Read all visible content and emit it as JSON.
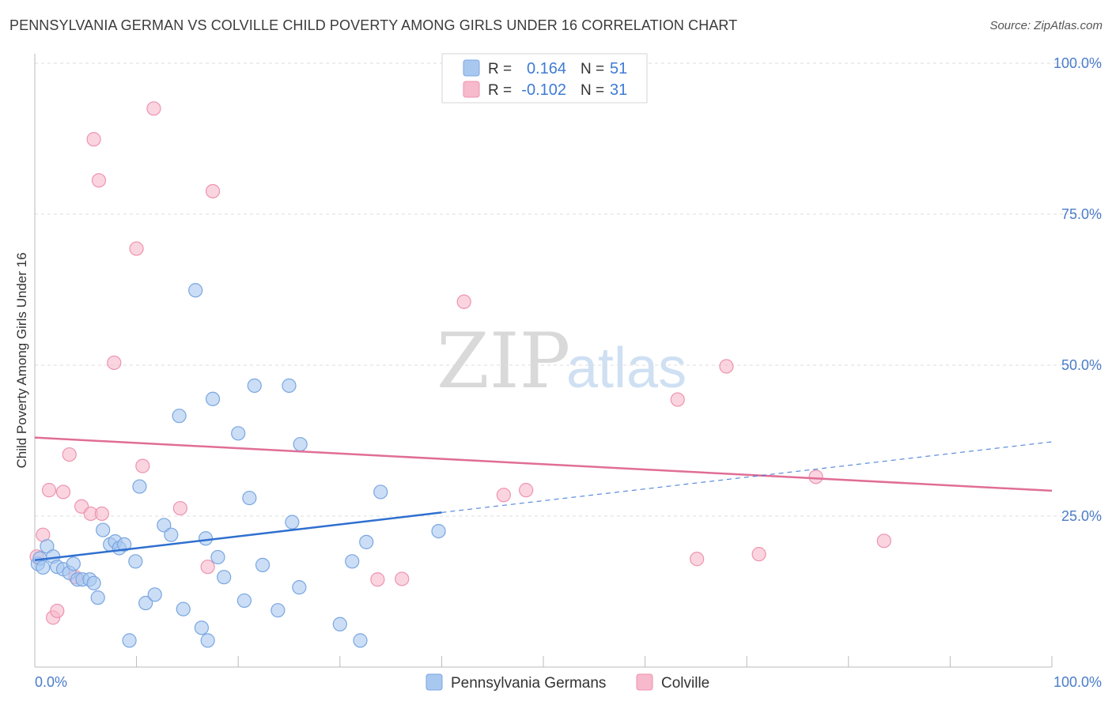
{
  "header": {
    "title": "PENNSYLVANIA GERMAN VS COLVILLE CHILD POVERTY AMONG GIRLS UNDER 16 CORRELATION CHART",
    "source": "Source: ZipAtlas.com"
  },
  "watermark": {
    "zip": "ZIP",
    "atlas": "atlas"
  },
  "legend_top": {
    "r_label": "R =",
    "n_label": "N =",
    "rows": [
      {
        "r": "0.164",
        "n": "51",
        "color": "#a9c8f0"
      },
      {
        "r": "-0.102",
        "n": "31",
        "color": "#f7b9cc"
      }
    ]
  },
  "legend_bottom": [
    {
      "label": "Pennsylvania Germans",
      "color": "#a9c8f0"
    },
    {
      "label": "Colville",
      "color": "#f7b9cc"
    }
  ],
  "colors": {
    "blue_fill": "#a9c8f0",
    "blue_stroke": "#7aa6e0",
    "blue_line": "#2f6fcf",
    "pink_fill": "#f7b9cc",
    "pink_stroke": "#ee93b0",
    "pink_line": "#e06e96",
    "grid": "#dddddd",
    "tick_text": "#4a7cc9"
  },
  "chart_data": {
    "type": "scatter",
    "title": "PENNSYLVANIA GERMAN VS COLVILLE CHILD POVERTY AMONG GIRLS UNDER 16 CORRELATION CHART",
    "xlabel": "",
    "ylabel": "Child Poverty Among Girls Under 16",
    "xlim": [
      0,
      100
    ],
    "ylim": [
      0,
      100
    ],
    "x_tick_labels": [
      "0.0%",
      "100.0%"
    ],
    "y_ticks": [
      25,
      50,
      75,
      100
    ],
    "y_tick_labels": [
      "25.0%",
      "50.0%",
      "75.0%",
      "100.0%"
    ],
    "grid": true,
    "legend": "bottom-center",
    "series": [
      {
        "name": "Pennsylvania Germans",
        "r": 0.164,
        "n": 51,
        "trend": {
          "x0": 0,
          "y0": 17.7,
          "x1": 40,
          "y1": 25.6,
          "dash_to_x": 100,
          "dash_to_y": 37.3
        },
        "points": [
          [
            0.3,
            17.1
          ],
          [
            0.5,
            18.0
          ],
          [
            0.8,
            16.5
          ],
          [
            1.2,
            20.0
          ],
          [
            1.8,
            18.3
          ],
          [
            2.2,
            16.6
          ],
          [
            2.8,
            16.2
          ],
          [
            3.4,
            15.6
          ],
          [
            3.8,
            17.1
          ],
          [
            4.2,
            14.5
          ],
          [
            4.7,
            14.5
          ],
          [
            5.4,
            14.5
          ],
          [
            5.8,
            13.9
          ],
          [
            6.2,
            11.5
          ],
          [
            6.7,
            22.7
          ],
          [
            7.4,
            20.3
          ],
          [
            7.9,
            20.8
          ],
          [
            8.3,
            19.7
          ],
          [
            8.8,
            20.3
          ],
          [
            9.3,
            4.4
          ],
          [
            9.9,
            17.5
          ],
          [
            10.3,
            29.9
          ],
          [
            10.9,
            10.6
          ],
          [
            11.8,
            12.0
          ],
          [
            12.7,
            23.5
          ],
          [
            13.4,
            21.9
          ],
          [
            14.2,
            41.6
          ],
          [
            14.6,
            9.6
          ],
          [
            15.8,
            62.4
          ],
          [
            16.4,
            6.5
          ],
          [
            16.8,
            21.3
          ],
          [
            17.0,
            4.4
          ],
          [
            17.5,
            44.4
          ],
          [
            18.0,
            18.2
          ],
          [
            18.6,
            14.9
          ],
          [
            20.0,
            38.7
          ],
          [
            20.6,
            11.0
          ],
          [
            21.1,
            28.0
          ],
          [
            21.6,
            46.6
          ],
          [
            22.4,
            16.9
          ],
          [
            23.9,
            9.4
          ],
          [
            25.0,
            46.6
          ],
          [
            25.3,
            24.0
          ],
          [
            26.0,
            13.2
          ],
          [
            26.1,
            36.9
          ],
          [
            30.0,
            7.1
          ],
          [
            31.2,
            17.5
          ],
          [
            32.0,
            4.4
          ],
          [
            32.6,
            20.7
          ],
          [
            34.0,
            29.0
          ],
          [
            39.7,
            22.5
          ]
        ]
      },
      {
        "name": "Colville",
        "r": -0.102,
        "n": 31,
        "trend": {
          "x0": 0,
          "y0": 38.0,
          "x1": 100,
          "y1": 29.2
        },
        "points": [
          [
            0.2,
            18.3
          ],
          [
            0.8,
            21.9
          ],
          [
            1.4,
            29.3
          ],
          [
            1.8,
            8.2
          ],
          [
            2.2,
            9.3
          ],
          [
            2.8,
            29.0
          ],
          [
            3.4,
            35.2
          ],
          [
            4.0,
            14.9
          ],
          [
            4.6,
            26.6
          ],
          [
            5.5,
            25.4
          ],
          [
            5.8,
            87.4
          ],
          [
            6.3,
            80.6
          ],
          [
            6.6,
            25.4
          ],
          [
            7.8,
            50.4
          ],
          [
            10.0,
            69.3
          ],
          [
            10.6,
            33.3
          ],
          [
            11.7,
            92.5
          ],
          [
            14.3,
            26.3
          ],
          [
            17.0,
            16.6
          ],
          [
            17.5,
            78.8
          ],
          [
            33.7,
            14.5
          ],
          [
            36.1,
            14.6
          ],
          [
            42.2,
            60.5
          ],
          [
            46.1,
            28.5
          ],
          [
            48.3,
            29.3
          ],
          [
            63.2,
            44.3
          ],
          [
            65.1,
            17.9
          ],
          [
            68.0,
            49.8
          ],
          [
            71.2,
            18.7
          ],
          [
            76.8,
            31.5
          ],
          [
            83.5,
            20.9
          ]
        ]
      }
    ]
  }
}
